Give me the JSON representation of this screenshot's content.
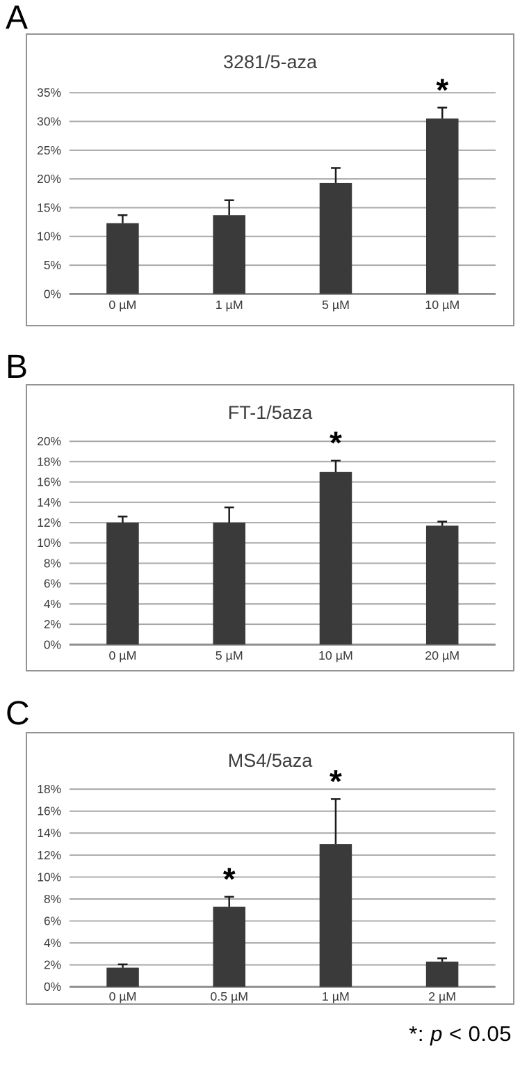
{
  "page": {
    "footnote": {
      "star": "*",
      "colon": ": ",
      "p": "p",
      "rest": " < 0.05"
    }
  },
  "colors": {
    "bar": "#3a3a3a",
    "gridline": "#a8a8a8",
    "baseline": "#8f8f8f",
    "panel_border": "#949494",
    "axis_text": "#3a3a3a",
    "title_text": "#3d3d3d",
    "error_bar": "#1c1c1c",
    "asterisk": "#000000"
  },
  "chart_data": [
    {
      "type": "bar",
      "panel_label": "A",
      "title": "3281/5-aza",
      "categories": [
        "0 µM",
        "1 µM",
        "5 µM",
        "10 µM"
      ],
      "values": [
        12.3,
        13.7,
        19.3,
        30.5
      ],
      "errors_up": [
        1.4,
        2.6,
        2.6,
        1.9
      ],
      "significant": [
        false,
        false,
        false,
        true
      ],
      "significance_marker": "*",
      "ylim": [
        0,
        35
      ],
      "ytick_step": 5,
      "ytick_labels": [
        "0%",
        "5%",
        "10%",
        "15%",
        "20%",
        "25%",
        "30%",
        "35%"
      ],
      "grid": true,
      "legend": null
    },
    {
      "type": "bar",
      "panel_label": "B",
      "title": "FT-1/5aza",
      "categories": [
        "0 µM",
        "5 µM",
        "10 µM",
        "20 µM"
      ],
      "values": [
        12.0,
        12.0,
        17.0,
        11.7
      ],
      "errors_up": [
        0.6,
        1.5,
        1.1,
        0.4
      ],
      "significant": [
        false,
        false,
        true,
        false
      ],
      "significance_marker": "*",
      "ylim": [
        0,
        20
      ],
      "ytick_step": 2,
      "ytick_labels": [
        "0%",
        "2%",
        "4%",
        "6%",
        "8%",
        "10%",
        "12%",
        "14%",
        "16%",
        "18%",
        "20%"
      ],
      "grid": true,
      "legend": null
    },
    {
      "type": "bar",
      "panel_label": "C",
      "title": "MS4/5aza",
      "categories": [
        "0 µM",
        "0.5 µM",
        "1 µM",
        "2 µM"
      ],
      "values": [
        1.75,
        7.3,
        13.0,
        2.3
      ],
      "errors_up": [
        0.3,
        0.9,
        4.1,
        0.3
      ],
      "significant": [
        false,
        true,
        true,
        false
      ],
      "significance_marker": "*",
      "ylim": [
        0,
        18
      ],
      "ytick_step": 2,
      "ytick_labels": [
        "0%",
        "2%",
        "4%",
        "6%",
        "8%",
        "10%",
        "12%",
        "14%",
        "16%",
        "18%"
      ],
      "grid": true,
      "legend": null
    }
  ]
}
